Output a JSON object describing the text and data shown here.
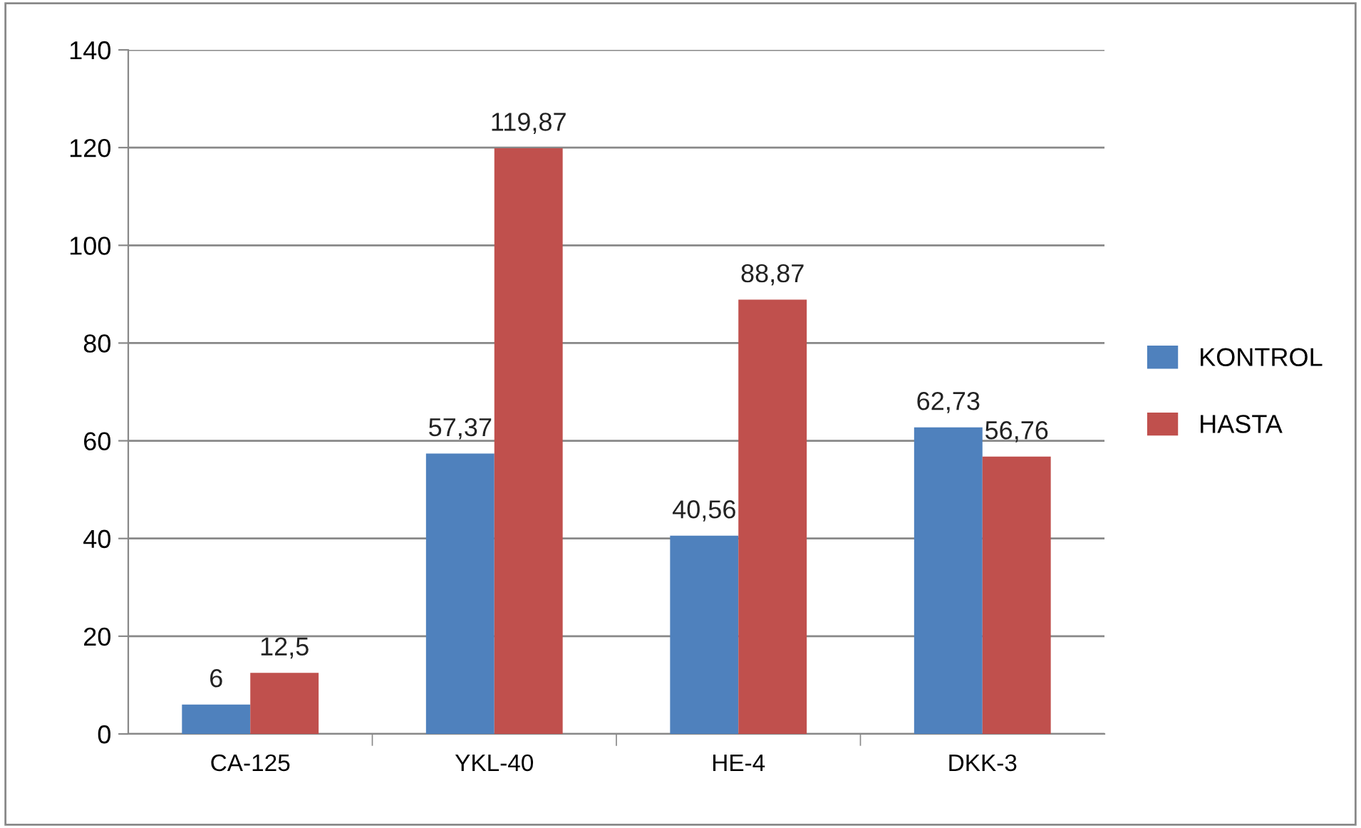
{
  "chart_data": {
    "type": "bar",
    "categories": [
      "CA-125",
      "YKL-40",
      "HE-4",
      "DKK-3"
    ],
    "series": [
      {
        "name": "KONTROL",
        "color": "#4f81bd",
        "values": [
          6,
          57.37,
          40.56,
          62.73
        ],
        "value_labels": [
          "6",
          "57,37",
          "40,56",
          "62,73"
        ]
      },
      {
        "name": "HASTA",
        "color": "#c0504d",
        "values": [
          12.5,
          119.87,
          88.87,
          56.76
        ],
        "value_labels": [
          "12,5",
          "119,87",
          "88,87",
          "56,76"
        ]
      }
    ],
    "ylim": [
      0,
      140
    ],
    "yticks": [
      0,
      20,
      40,
      60,
      80,
      100,
      120,
      140
    ],
    "grid": "y",
    "legend": "right"
  }
}
